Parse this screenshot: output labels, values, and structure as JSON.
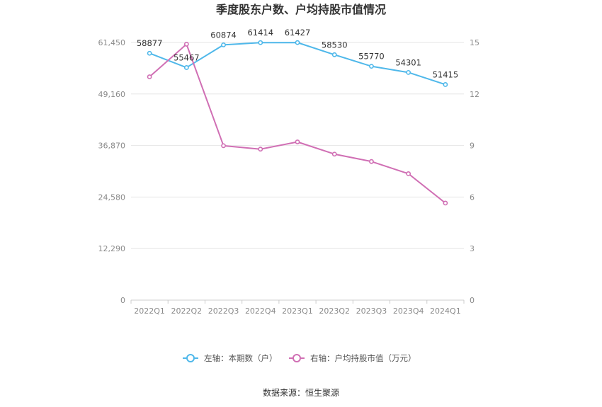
{
  "chart_data": {
    "type": "line",
    "title": "季度股东户数、户均持股市值情况",
    "categories": [
      "2022Q1",
      "2022Q2",
      "2022Q3",
      "2022Q4",
      "2023Q1",
      "2023Q2",
      "2023Q3",
      "2023Q4",
      "2024Q1"
    ],
    "left_axis": {
      "ticks": [
        "0",
        "12,290",
        "24,580",
        "36,870",
        "49,160",
        "61,450"
      ],
      "ylim": [
        0,
        61450
      ]
    },
    "right_axis": {
      "ticks": [
        "0",
        "3",
        "6",
        "9",
        "12",
        "15"
      ],
      "ylim": [
        0,
        15
      ]
    },
    "series": [
      {
        "name": "左轴：本期数（户）",
        "axis": "left",
        "color": "#4fb8ea",
        "values": [
          58877,
          55467,
          60874,
          61414,
          61427,
          58530,
          55770,
          54301,
          51415
        ],
        "labels": [
          "58877",
          "55467",
          "60874",
          "61414",
          "61427",
          "58530",
          "55770",
          "54301",
          "51415"
        ]
      },
      {
        "name": "右轴：户均持股市值（万元）",
        "axis": "right",
        "color": "#d06fb4",
        "values": [
          13.0,
          14.9,
          8.99,
          8.79,
          9.21,
          8.5,
          8.07,
          7.36,
          5.65
        ]
      }
    ],
    "grid": true,
    "legend": "bottom"
  },
  "footer": {
    "source": "数据来源：恒生聚源"
  }
}
